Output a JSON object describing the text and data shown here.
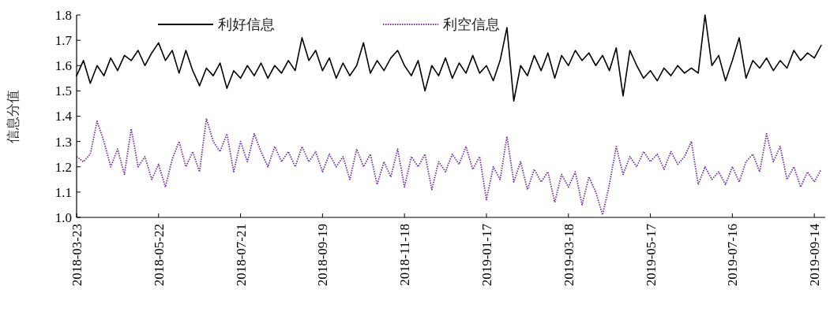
{
  "chart_data": {
    "type": "line",
    "ylabel": "信息分值",
    "legend": "top",
    "grid": false,
    "x": [
      "2018-03-23",
      "2018-03-28",
      "2018-04-02",
      "2018-04-07",
      "2018-04-12",
      "2018-04-17",
      "2018-04-22",
      "2018-04-27",
      "2018-05-02",
      "2018-05-07",
      "2018-05-12",
      "2018-05-17",
      "2018-05-22",
      "2018-05-27",
      "2018-06-01",
      "2018-06-06",
      "2018-06-11",
      "2018-06-16",
      "2018-06-21",
      "2018-06-26",
      "2018-07-01",
      "2018-07-06",
      "2018-07-11",
      "2018-07-16",
      "2018-07-21",
      "2018-07-26",
      "2018-07-31",
      "2018-08-05",
      "2018-08-10",
      "2018-08-15",
      "2018-08-20",
      "2018-08-25",
      "2018-08-30",
      "2018-09-04",
      "2018-09-09",
      "2018-09-14",
      "2018-09-19",
      "2018-09-24",
      "2018-09-29",
      "2018-10-04",
      "2018-10-09",
      "2018-10-14",
      "2018-10-19",
      "2018-10-24",
      "2018-10-29",
      "2018-11-03",
      "2018-11-08",
      "2018-11-13",
      "2018-11-18",
      "2018-11-23",
      "2018-11-28",
      "2018-12-03",
      "2018-12-08",
      "2018-12-13",
      "2018-12-18",
      "2018-12-23",
      "2018-12-28",
      "2019-01-02",
      "2019-01-07",
      "2019-01-12",
      "2019-01-17",
      "2019-01-22",
      "2019-01-27",
      "2019-02-01",
      "2019-02-06",
      "2019-02-11",
      "2019-02-16",
      "2019-02-21",
      "2019-02-26",
      "2019-03-03",
      "2019-03-08",
      "2019-03-13",
      "2019-03-18",
      "2019-03-23",
      "2019-03-28",
      "2019-04-02",
      "2019-04-07",
      "2019-04-12",
      "2019-04-17",
      "2019-04-22",
      "2019-04-27",
      "2019-05-02",
      "2019-05-07",
      "2019-05-12",
      "2019-05-17",
      "2019-05-22",
      "2019-05-27",
      "2019-06-01",
      "2019-06-06",
      "2019-06-11",
      "2019-06-16",
      "2019-06-21",
      "2019-06-26",
      "2019-07-01",
      "2019-07-06",
      "2019-07-11",
      "2019-07-16",
      "2019-07-21",
      "2019-07-26",
      "2019-07-31",
      "2019-08-05",
      "2019-08-10",
      "2019-08-15",
      "2019-08-20",
      "2019-08-25",
      "2019-08-30",
      "2019-09-04",
      "2019-09-09",
      "2019-09-14",
      "2019-09-19"
    ],
    "series": [
      {
        "name": "利好信息",
        "color": "#000000",
        "line_style": "solid",
        "values": [
          1.56,
          1.62,
          1.53,
          1.6,
          1.56,
          1.63,
          1.58,
          1.64,
          1.62,
          1.66,
          1.6,
          1.65,
          1.69,
          1.62,
          1.66,
          1.57,
          1.66,
          1.58,
          1.52,
          1.59,
          1.56,
          1.61,
          1.51,
          1.58,
          1.55,
          1.6,
          1.56,
          1.61,
          1.55,
          1.6,
          1.57,
          1.62,
          1.58,
          1.71,
          1.62,
          1.66,
          1.58,
          1.63,
          1.55,
          1.61,
          1.56,
          1.6,
          1.69,
          1.57,
          1.62,
          1.58,
          1.63,
          1.66,
          1.6,
          1.56,
          1.62,
          1.5,
          1.6,
          1.56,
          1.63,
          1.55,
          1.61,
          1.57,
          1.64,
          1.57,
          1.6,
          1.54,
          1.62,
          1.75,
          1.46,
          1.6,
          1.56,
          1.64,
          1.58,
          1.65,
          1.55,
          1.64,
          1.6,
          1.66,
          1.62,
          1.65,
          1.6,
          1.64,
          1.58,
          1.67,
          1.48,
          1.66,
          1.6,
          1.55,
          1.58,
          1.54,
          1.59,
          1.56,
          1.6,
          1.57,
          1.59,
          1.57,
          1.8,
          1.6,
          1.64,
          1.54,
          1.62,
          1.71,
          1.55,
          1.62,
          1.59,
          1.63,
          1.58,
          1.62,
          1.59,
          1.66,
          1.62,
          1.65,
          1.63,
          1.68
        ]
      },
      {
        "name": "利空信息",
        "color": "#7030a0",
        "line_style": "dotted",
        "values": [
          1.24,
          1.22,
          1.25,
          1.38,
          1.3,
          1.2,
          1.27,
          1.17,
          1.35,
          1.2,
          1.24,
          1.15,
          1.21,
          1.12,
          1.23,
          1.3,
          1.2,
          1.26,
          1.18,
          1.39,
          1.3,
          1.26,
          1.33,
          1.18,
          1.3,
          1.22,
          1.33,
          1.26,
          1.2,
          1.28,
          1.22,
          1.26,
          1.2,
          1.28,
          1.22,
          1.26,
          1.18,
          1.25,
          1.2,
          1.24,
          1.15,
          1.27,
          1.2,
          1.25,
          1.13,
          1.22,
          1.16,
          1.27,
          1.12,
          1.24,
          1.2,
          1.25,
          1.11,
          1.22,
          1.18,
          1.25,
          1.21,
          1.28,
          1.19,
          1.24,
          1.07,
          1.2,
          1.15,
          1.32,
          1.14,
          1.22,
          1.11,
          1.19,
          1.14,
          1.18,
          1.06,
          1.17,
          1.12,
          1.18,
          1.05,
          1.16,
          1.1,
          1.01,
          1.13,
          1.28,
          1.17,
          1.24,
          1.2,
          1.26,
          1.22,
          1.25,
          1.19,
          1.26,
          1.21,
          1.24,
          1.3,
          1.13,
          1.2,
          1.15,
          1.18,
          1.13,
          1.2,
          1.14,
          1.22,
          1.25,
          1.18,
          1.33,
          1.22,
          1.28,
          1.15,
          1.2,
          1.12,
          1.18,
          1.14,
          1.19
        ]
      }
    ],
    "xlim": [
      "2018-03-23",
      "2019-09-22"
    ],
    "xticks": [
      "2018-03-23",
      "2018-05-22",
      "2018-07-21",
      "2018-09-19",
      "2018-11-18",
      "2019-01-17",
      "2019-03-18",
      "2019-05-17",
      "2019-07-16",
      "2019-09-14"
    ],
    "ylim": [
      1.0,
      1.8
    ],
    "yticks": [
      {
        "value": 1.0,
        "label": "1.0"
      },
      {
        "value": 1.1,
        "label": "1.1"
      },
      {
        "value": 1.2,
        "label": "1.2"
      },
      {
        "value": 1.3,
        "label": "1.3"
      },
      {
        "value": 1.4,
        "label": "1.4"
      },
      {
        "value": 1.5,
        "label": "1.5"
      },
      {
        "value": 1.6,
        "label": "1.6"
      },
      {
        "value": 1.7,
        "label": "1.7"
      },
      {
        "value": 1.8,
        "label": "1.8"
      }
    ]
  }
}
